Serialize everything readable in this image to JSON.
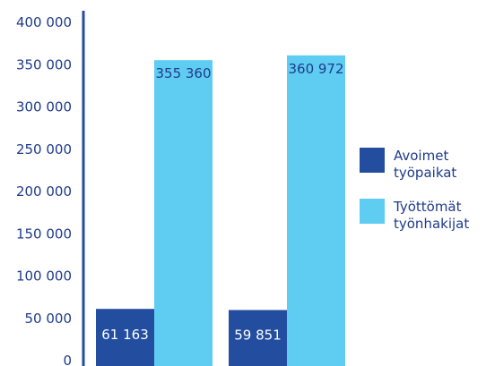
{
  "chart_data": {
    "type": "bar",
    "title": "",
    "xlabel": "",
    "ylabel": "",
    "ylim": [
      0,
      400000
    ],
    "yticks": [
      {
        "value": 0,
        "label": "0"
      },
      {
        "value": 50000,
        "label": "50 000"
      },
      {
        "value": 100000,
        "label": "100 000"
      },
      {
        "value": 150000,
        "label": "150 000"
      },
      {
        "value": 200000,
        "label": "200 000"
      },
      {
        "value": 250000,
        "label": "250 000"
      },
      {
        "value": 300000,
        "label": "300 000"
      },
      {
        "value": 350000,
        "label": "350 000"
      },
      {
        "value": 400000,
        "label": "400 000"
      }
    ],
    "grid": false,
    "legend_placement": "right",
    "categories": [
      "",
      ""
    ],
    "series": [
      {
        "name": "Avoimet työpaikat",
        "name_lines": [
          "Avoimet",
          "työpaikat"
        ],
        "color": "#234ea0",
        "label_color": "#ffffff",
        "values": [
          61163,
          59851
        ],
        "labels": [
          "61 163",
          "59 851"
        ]
      },
      {
        "name": "Työttömät työnhakijat",
        "name_lines": [
          "Työttömät",
          "työnhakijat"
        ],
        "color": "#5fcdf2",
        "label_color": "#1f3b8c",
        "values": [
          355360,
          360972
        ],
        "labels": [
          "355 360",
          "360 972"
        ]
      }
    ],
    "axis_color": "#234ea0"
  }
}
